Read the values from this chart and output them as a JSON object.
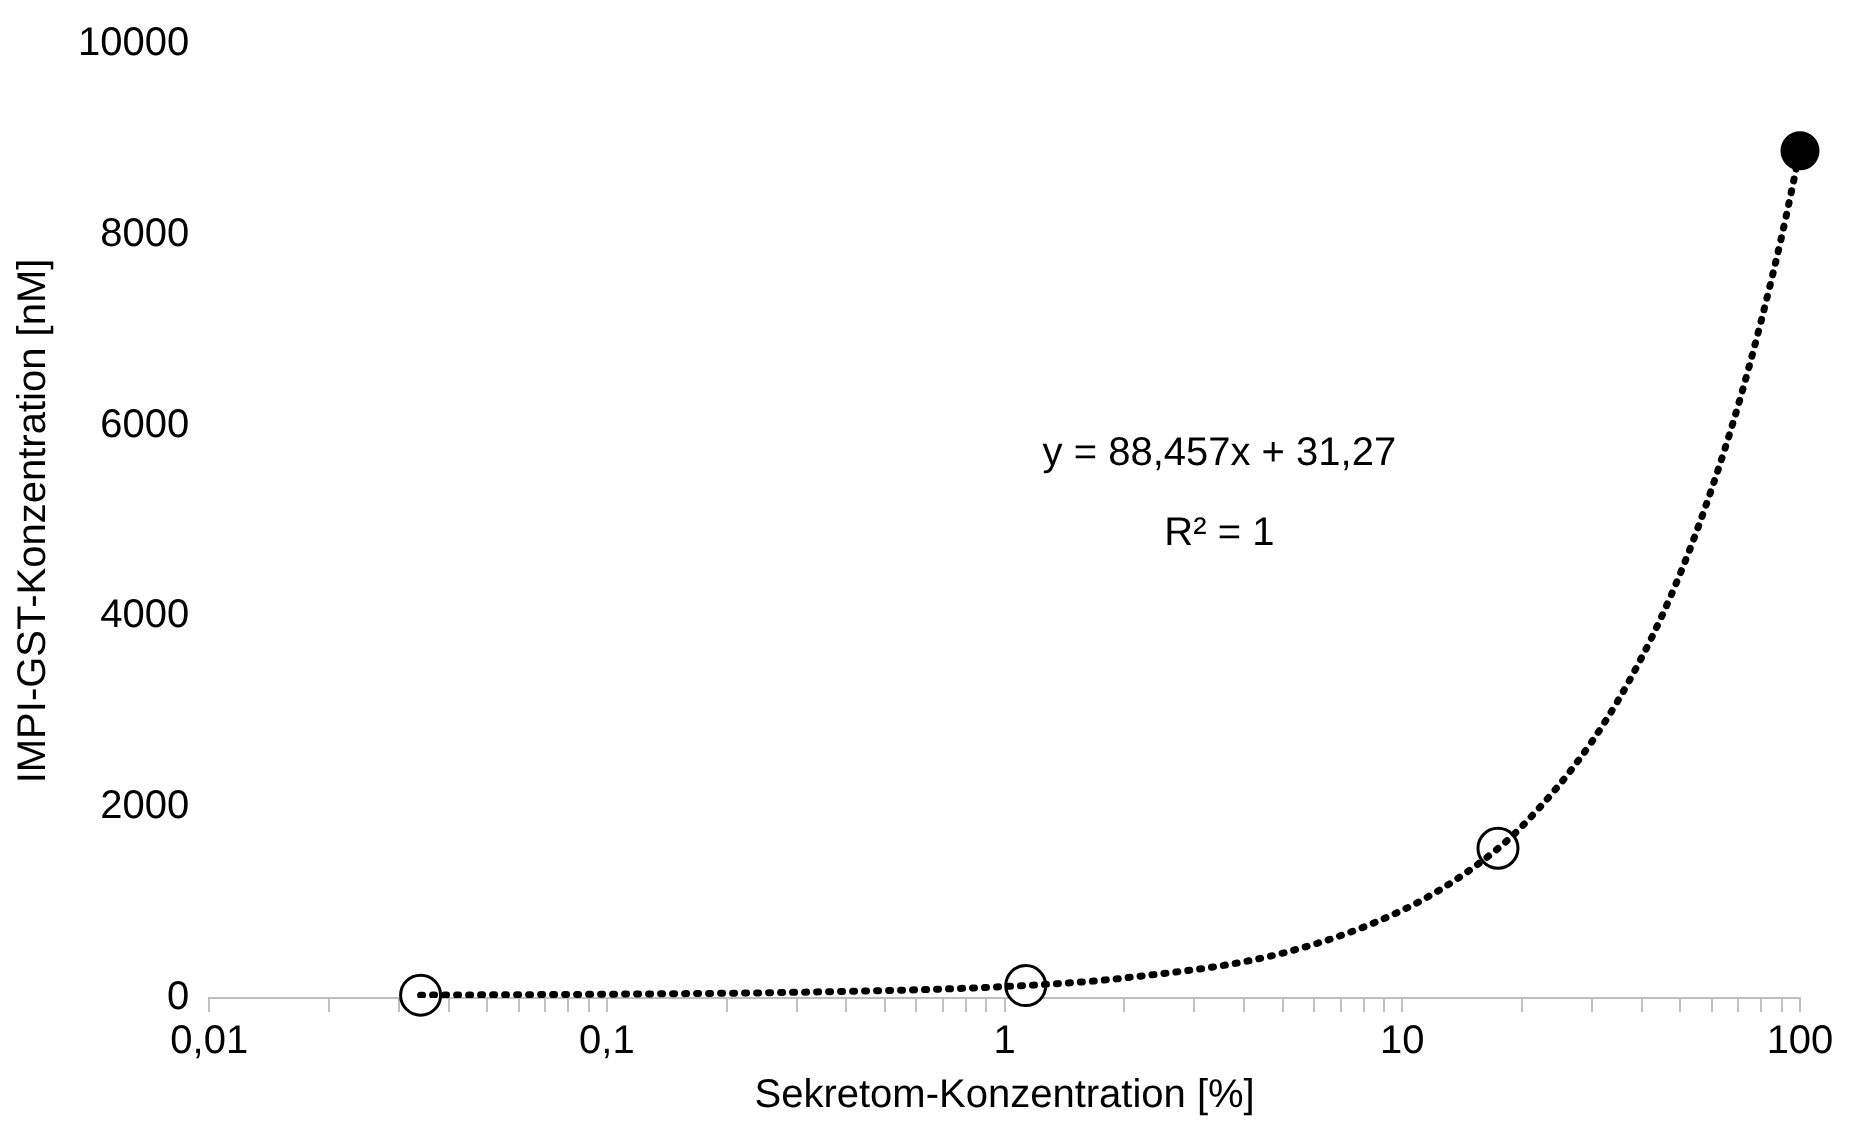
{
  "chart_data": {
    "type": "scatter",
    "xlabel": "Sekretom-Konzentration [%]",
    "ylabel": "IMPI-GST-Konzentration [nM]",
    "log": "x",
    "xlim": [
      0.01,
      100
    ],
    "ylim": [
      0,
      10000
    ],
    "xticks": [
      {
        "value": 0.01,
        "label": "0,01"
      },
      {
        "value": 0.02,
        "label": null
      },
      {
        "value": 0.03,
        "label": null
      },
      {
        "value": 0.04,
        "label": null
      },
      {
        "value": 0.05,
        "label": null
      },
      {
        "value": 0.06,
        "label": null
      },
      {
        "value": 0.07,
        "label": null
      },
      {
        "value": 0.08,
        "label": null
      },
      {
        "value": 0.09,
        "label": null
      },
      {
        "value": 0.1,
        "label": "0,1"
      },
      {
        "value": 0.2,
        "label": null
      },
      {
        "value": 0.3,
        "label": null
      },
      {
        "value": 0.4,
        "label": null
      },
      {
        "value": 0.5,
        "label": null
      },
      {
        "value": 0.6,
        "label": null
      },
      {
        "value": 0.7,
        "label": null
      },
      {
        "value": 0.8,
        "label": null
      },
      {
        "value": 0.9,
        "label": null
      },
      {
        "value": 1,
        "label": "1"
      },
      {
        "value": 2,
        "label": null
      },
      {
        "value": 3,
        "label": null
      },
      {
        "value": 4,
        "label": null
      },
      {
        "value": 5,
        "label": null
      },
      {
        "value": 6,
        "label": null
      },
      {
        "value": 7,
        "label": null
      },
      {
        "value": 8,
        "label": null
      },
      {
        "value": 9,
        "label": null
      },
      {
        "value": 10,
        "label": "10"
      },
      {
        "value": 20,
        "label": null
      },
      {
        "value": 30,
        "label": null
      },
      {
        "value": 40,
        "label": null
      },
      {
        "value": 50,
        "label": null
      },
      {
        "value": 60,
        "label": null
      },
      {
        "value": 70,
        "label": null
      },
      {
        "value": 80,
        "label": null
      },
      {
        "value": 90,
        "label": null
      },
      {
        "value": 100,
        "label": "100"
      }
    ],
    "yticks": [
      0,
      2000,
      4000,
      6000,
      8000,
      10000
    ],
    "grid": false,
    "legend": false,
    "marker": "circle",
    "annotations": [
      "y = 88,457x + 31,27",
      "R² = 1"
    ],
    "series": [
      {
        "type": "line",
        "line_style": "dotted",
        "marker": "none",
        "color": "#000000",
        "x": [
          0.034,
          0.1,
          0.3,
          1,
          2,
          5,
          10,
          15,
          20,
          30,
          40,
          50,
          60,
          70,
          80,
          90,
          100
        ],
        "values": [
          30,
          40,
          60,
          120,
          210,
          470,
          920,
          1360,
          1800,
          2690,
          3570,
          4450,
          5340,
          6220,
          7110,
          7990,
          8880
        ]
      },
      {
        "color": "#000000",
        "x": [
          0.034,
          1.13,
          17.4
        ],
        "values": [
          30,
          130,
          1570
        ]
      },
      {
        "color": "#000000",
        "x": [
          100
        ],
        "values": [
          8880
        ]
      }
    ]
  }
}
